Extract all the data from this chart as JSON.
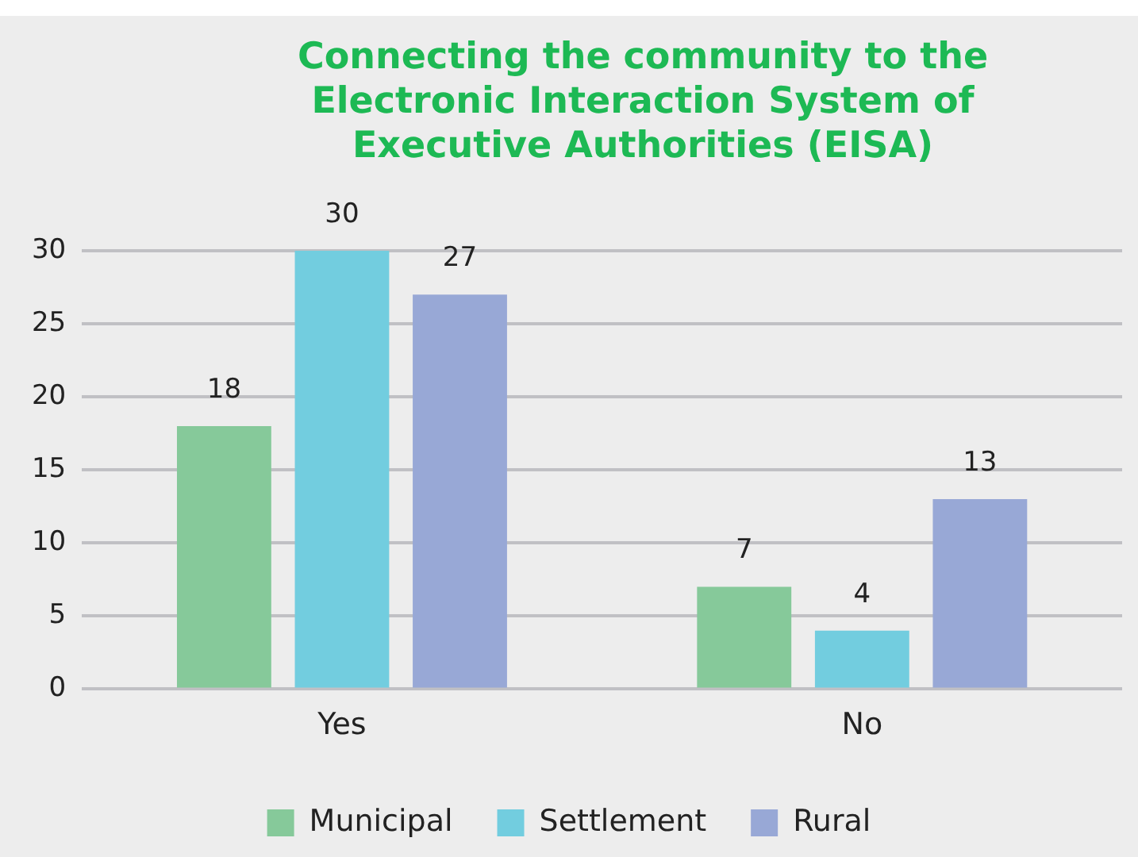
{
  "chart_data": {
    "type": "bar",
    "title": "Connecting the community to the Electronic Interaction System of Executive Authorities (EISA)",
    "categories": [
      "Yes",
      "No"
    ],
    "series": [
      {
        "name": "Municipal",
        "color": "#86c99a",
        "values": [
          18,
          7
        ]
      },
      {
        "name": "Settlement",
        "color": "#72cddf",
        "values": [
          30,
          4
        ]
      },
      {
        "name": "Rural",
        "color": "#98a8d6",
        "values": [
          27,
          13
        ]
      }
    ],
    "ylim": [
      0,
      30
    ],
    "yticks": [
      0,
      5,
      10,
      15,
      20,
      25,
      30
    ],
    "grid": "y",
    "legend": "bottom",
    "data_labels": true
  }
}
